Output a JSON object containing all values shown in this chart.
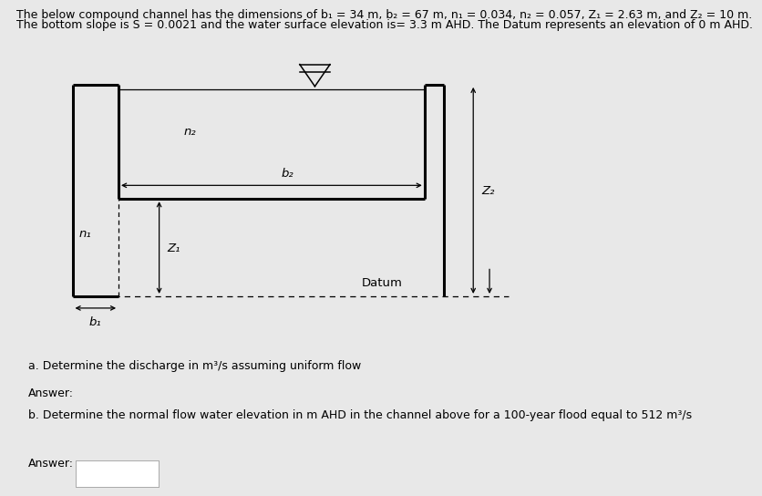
{
  "title_line1": "The below compound channel has the dimensions of b₁ = 34 m, b₂ = 67 m, n₁ = 0.034, n₂ = 0.057, Z₁ = 2.63 m, and Z₂ = 10 m.",
  "title_line2": "The bottom slope is S = 0.0021 and the water surface elevation is= 3.3 m AHD. The Datum represents an elevation of 0 m AHD.",
  "question_a": "a. Determine the discharge in m³/s assuming uniform flow",
  "question_b": "b. Determine the normal flow water elevation in m AHD in the channel above for a 100-year flood equal to 512 m³/s",
  "answer_label": "Answer:",
  "label_n1": "n₁",
  "label_n2": "n₂",
  "label_b1": "b₁",
  "label_b2": "b₂",
  "label_Z1": "Z₁",
  "label_Z2": "Z₂",
  "label_datum": "Datum",
  "bg_color": "#e8e8e8",
  "text_color": "#000000",
  "title_fontsize": 9.0,
  "label_fontsize": 9.5,
  "question_fontsize": 9.0,
  "lw_channel": 2.2,
  "lw_thin": 1.0,
  "lw_dash": 0.9
}
